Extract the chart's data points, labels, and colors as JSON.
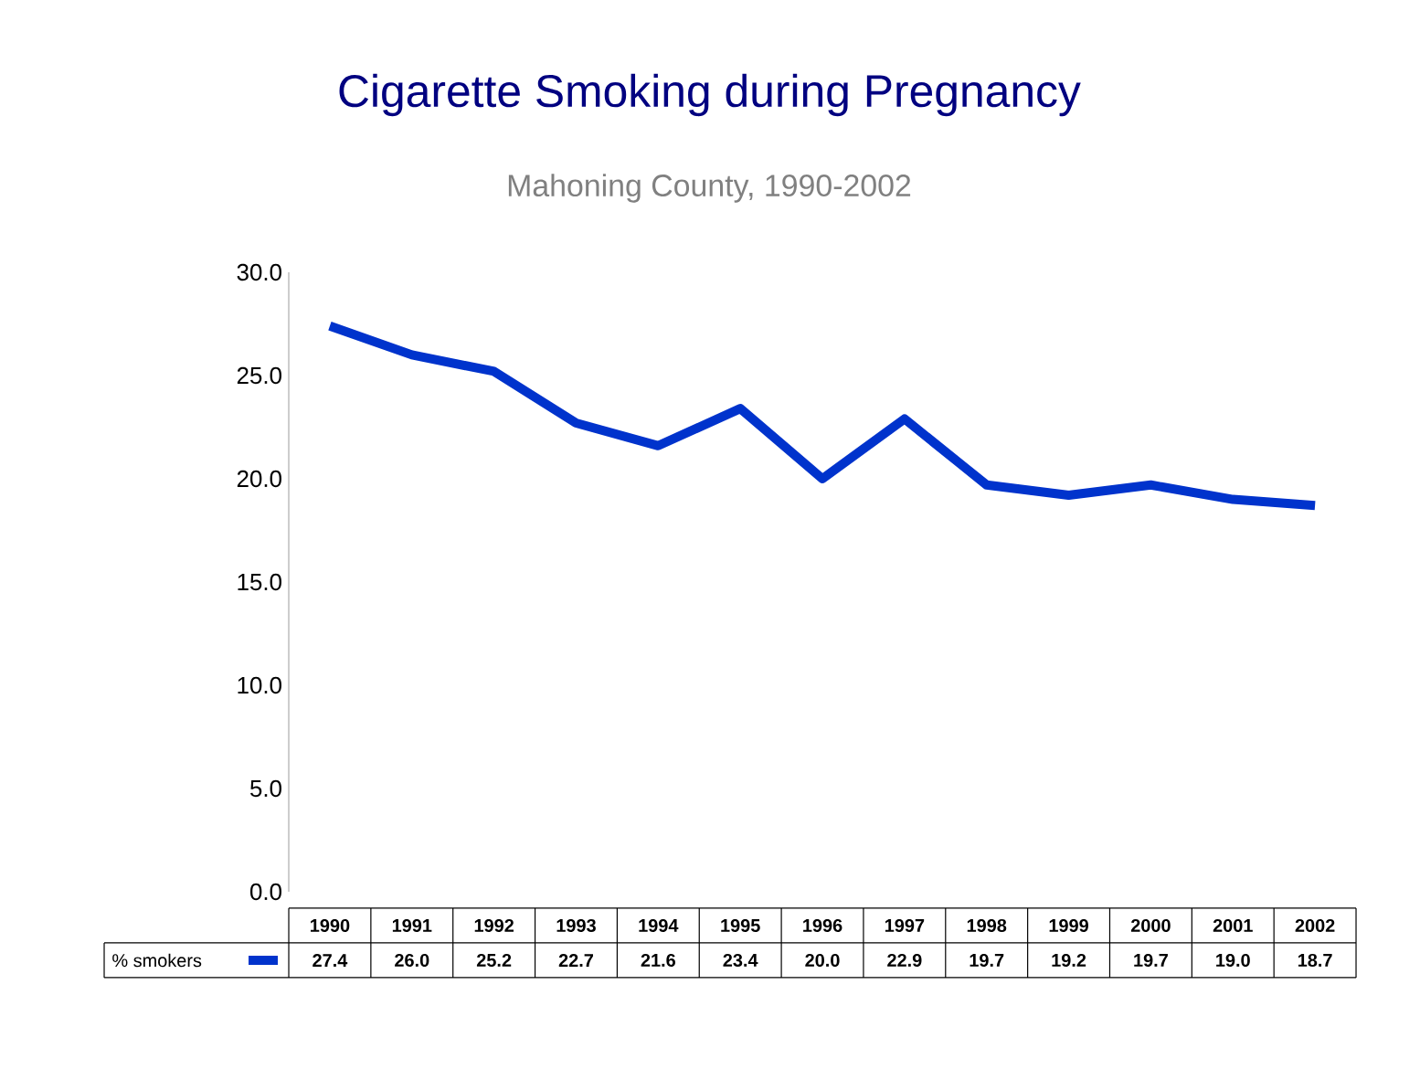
{
  "chart_data": {
    "type": "line",
    "title": "Cigarette Smoking during Pregnancy",
    "subtitle": "Mahoning County, 1990-2002",
    "categories": [
      "1990",
      "1991",
      "1992",
      "1993",
      "1994",
      "1995",
      "1996",
      "1997",
      "1998",
      "1999",
      "2000",
      "2001",
      "2002"
    ],
    "series": [
      {
        "name": "% smokers",
        "color": "#0033cc",
        "values": [
          27.4,
          26.0,
          25.2,
          22.7,
          21.6,
          23.4,
          20.0,
          22.9,
          19.7,
          19.2,
          19.7,
          19.0,
          18.7
        ],
        "value_labels": [
          "27.4",
          "26.0",
          "25.2",
          "22.7",
          "21.6",
          "23.4",
          "20.0",
          "22.9",
          "19.7",
          "19.2",
          "19.7",
          "19.0",
          "18.7"
        ]
      }
    ],
    "ylim": [
      0,
      30
    ],
    "yticks": [
      {
        "value": 0,
        "label": "0.0"
      },
      {
        "value": 5,
        "label": "5.0"
      },
      {
        "value": 10,
        "label": "10.0"
      },
      {
        "value": 15,
        "label": "15.0"
      },
      {
        "value": 20,
        "label": "20.0"
      },
      {
        "value": 25,
        "label": "25.0"
      },
      {
        "value": 30,
        "label": "30.0"
      }
    ],
    "legend": "bottom",
    "grid": false,
    "marker": "none",
    "line_style": "solid"
  }
}
